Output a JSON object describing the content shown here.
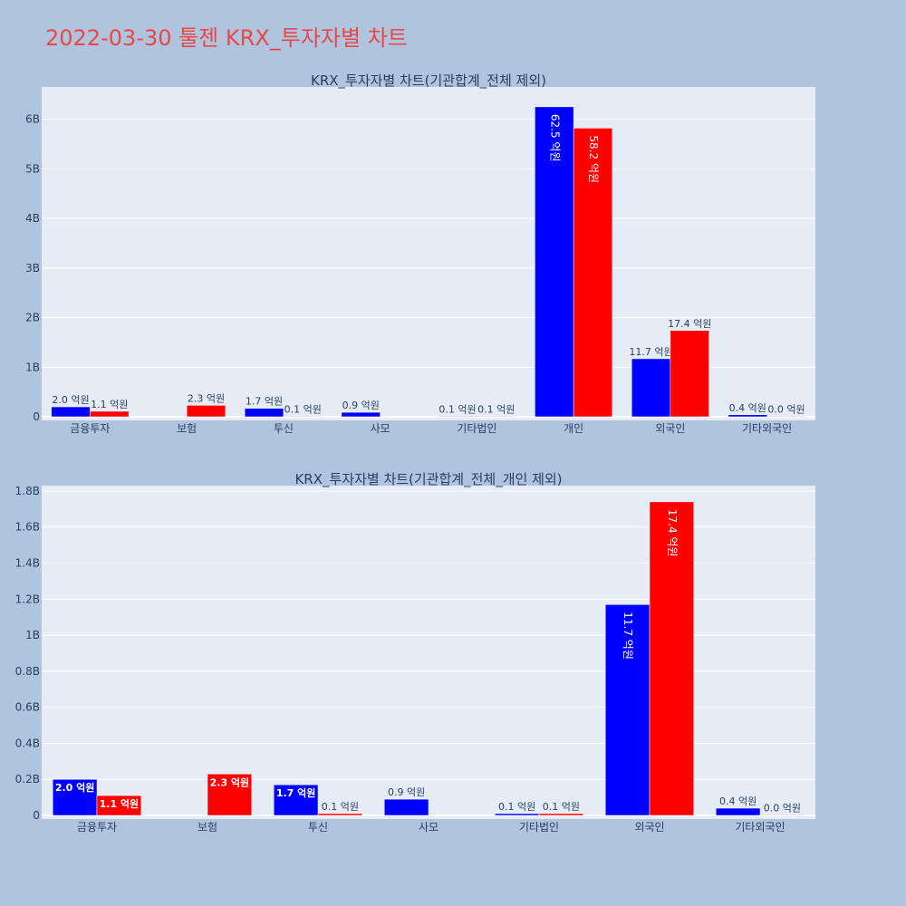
{
  "page_title": "2022-03-30 툴젠 KRX_투자자별 차트",
  "colors": {
    "buy": "#0000ff",
    "sell": "#ff0000",
    "plot_bg": "#e5ecf6",
    "page_bg": "#b0c4de",
    "title": "#e8484a"
  },
  "chart_data": [
    {
      "type": "bar",
      "title": "KRX_투자자별 차트(기관합계_전체 제외)",
      "categories": [
        "금융투자",
        "보험",
        "투신",
        "사모",
        "기타법인",
        "개인",
        "외국인",
        "기타외국인"
      ],
      "series": [
        {
          "color": "#0000ff",
          "values": [
            0.2,
            null,
            0.17,
            0.09,
            0.01,
            6.25,
            1.17,
            0.04
          ],
          "labels": [
            "2.0 억원",
            "",
            "1.7 억원",
            "0.9 억원",
            "0.1 억원",
            "62.5 억원",
            "11.7 억원",
            "0.4 억원"
          ]
        },
        {
          "color": "#ff0000",
          "values": [
            0.11,
            0.23,
            0.01,
            null,
            0.01,
            5.82,
            1.74,
            0.0
          ],
          "labels": [
            "1.1 억원",
            "2.3 억원",
            "0.1 억원",
            "",
            "0.1 억원",
            "58.2 억원",
            "17.4 억원",
            "0.0 억원"
          ]
        }
      ],
      "yticks": [
        0,
        1,
        2,
        3,
        4,
        5,
        6
      ],
      "ytick_labels": [
        "0",
        "1B",
        "2B",
        "3B",
        "4B",
        "5B",
        "6B"
      ],
      "ylim": [
        0,
        6.65
      ],
      "grid": true
    },
    {
      "type": "bar",
      "title": "KRX_투자자별 차트(기관합계_전체_개인 제외)",
      "categories": [
        "금융투자",
        "보험",
        "투신",
        "사모",
        "기타법인",
        "외국인",
        "기타외국인"
      ],
      "series": [
        {
          "color": "#0000ff",
          "values": [
            0.2,
            null,
            0.17,
            0.09,
            0.01,
            1.17,
            0.04
          ],
          "labels": [
            "2.0 억원",
            "",
            "1.7 억원",
            "0.9 억원",
            "0.1 억원",
            "11.7 억원",
            "0.4 억원"
          ]
        },
        {
          "color": "#ff0000",
          "values": [
            0.11,
            0.23,
            0.01,
            null,
            0.01,
            1.74,
            0.0
          ],
          "labels": [
            "1.1 억원",
            "2.3 억원",
            "0.1 억원",
            "",
            "0.1 억원",
            "17.4 억원",
            "0.0 억원"
          ]
        }
      ],
      "yticks": [
        0,
        0.2,
        0.4,
        0.6,
        0.8,
        1.0,
        1.2,
        1.4,
        1.6,
        1.8
      ],
      "ytick_labels": [
        "0",
        "0.2B",
        "0.4B",
        "0.6B",
        "0.8B",
        "1B",
        "1.2B",
        "1.4B",
        "1.6B",
        "1.8B"
      ],
      "ylim": [
        0,
        1.83
      ],
      "grid": true
    }
  ]
}
